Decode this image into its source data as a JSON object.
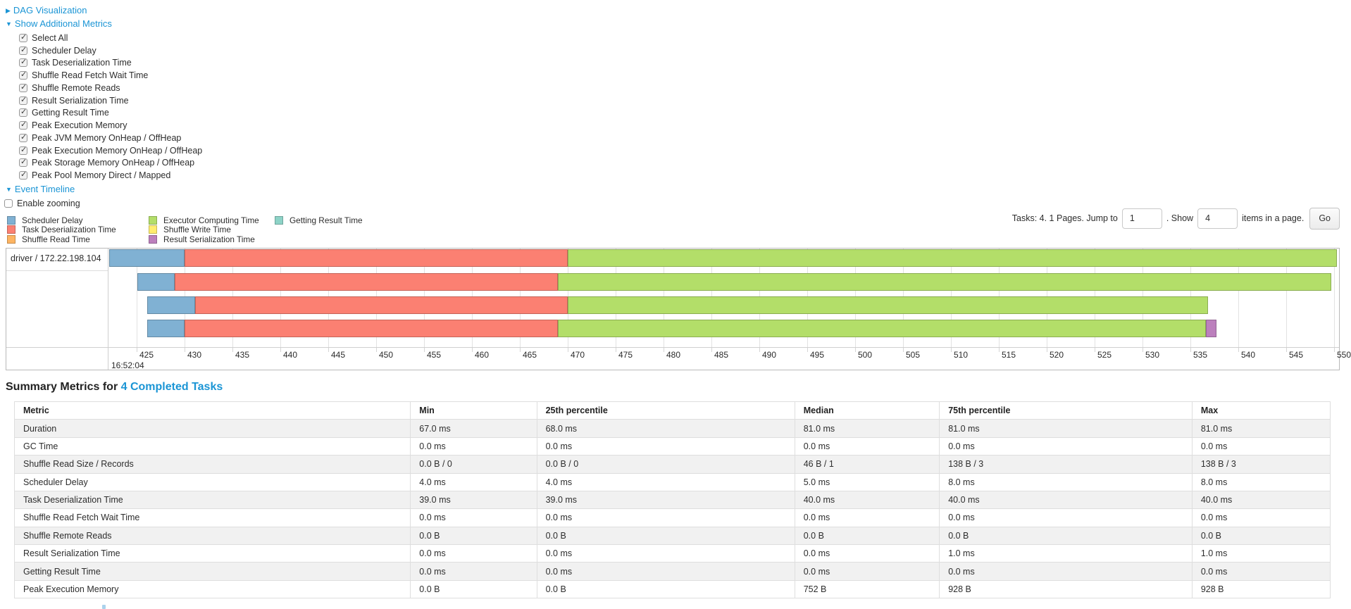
{
  "icons": {
    "collapsed_arrow": "▶",
    "expanded_arrow": "▼",
    "check": "✓"
  },
  "colors": {
    "link": "#1b95d5",
    "scheduler_delay": "#80B1D3",
    "task_deserialization": "#FB8072",
    "shuffle_read": "#FDB462",
    "executor_computing": "#B3DE69",
    "shuffle_write": "#FFED6F",
    "result_serialization": "#BC80BD",
    "getting_result": "#8DD3C7"
  },
  "nav": {
    "dag_label": "DAG Visualization",
    "metrics_label": "Show Additional Metrics",
    "timeline_label": "Event Timeline",
    "enable_zooming_label": "Enable zooming"
  },
  "metrics_panel": {
    "items": [
      "Select All",
      "Scheduler Delay",
      "Task Deserialization Time",
      "Shuffle Read Fetch Wait Time",
      "Shuffle Remote Reads",
      "Result Serialization Time",
      "Getting Result Time",
      "Peak Execution Memory",
      "Peak JVM Memory OnHeap / OffHeap",
      "Peak Execution Memory OnHeap / OffHeap",
      "Peak Storage Memory OnHeap / OffHeap",
      "Peak Pool Memory Direct / Mapped"
    ],
    "all_checked": true
  },
  "pagination": {
    "tasks_text": "Tasks: 4. 1 Pages. Jump to",
    "jump_value": "1",
    "show_text": ". Show",
    "show_value": "4",
    "items_text": "items in a page.",
    "go_label": "Go"
  },
  "legend": {
    "columns": [
      [
        {
          "key": "scheduler_delay",
          "label": "Scheduler Delay"
        },
        {
          "key": "task_deserialization",
          "label": "Task Deserialization Time"
        },
        {
          "key": "shuffle_read",
          "label": "Shuffle Read Time"
        }
      ],
      [
        {
          "key": "executor_computing",
          "label": "Executor Computing Time"
        },
        {
          "key": "shuffle_write",
          "label": "Shuffle Write Time"
        },
        {
          "key": "result_serialization",
          "label": "Result Serialization Time"
        }
      ],
      [
        {
          "key": "getting_result",
          "label": "Getting Result Time"
        }
      ]
    ]
  },
  "chart_data": {
    "type": "bar",
    "subtype": "horizontal-stacked-task-timeline",
    "group_label": "driver / 172.22.198.104",
    "x_axis": {
      "major_label": "16:52:04",
      "unit": "ms within second",
      "min": 422.1,
      "max": 550.7,
      "tick_start": 425,
      "tick_step": 5,
      "tick_end": 550
    },
    "rows": [
      {
        "segments": [
          {
            "key": "scheduler_delay",
            "start": 422.1,
            "end": 430.0
          },
          {
            "key": "task_deserialization",
            "start": 430.0,
            "end": 470.0
          },
          {
            "key": "executor_computing",
            "start": 470.0,
            "end": 550.3
          }
        ]
      },
      {
        "segments": [
          {
            "key": "scheduler_delay",
            "start": 425.1,
            "end": 429.0
          },
          {
            "key": "task_deserialization",
            "start": 429.0,
            "end": 469.0
          },
          {
            "key": "executor_computing",
            "start": 469.0,
            "end": 549.7
          }
        ]
      },
      {
        "segments": [
          {
            "key": "scheduler_delay",
            "start": 426.1,
            "end": 431.1
          },
          {
            "key": "task_deserialization",
            "start": 431.1,
            "end": 470.0
          },
          {
            "key": "executor_computing",
            "start": 470.0,
            "end": 536.8
          }
        ]
      },
      {
        "segments": [
          {
            "key": "scheduler_delay",
            "start": 426.1,
            "end": 430.0
          },
          {
            "key": "task_deserialization",
            "start": 430.0,
            "end": 469.0
          },
          {
            "key": "executor_computing",
            "start": 469.0,
            "end": 536.6
          },
          {
            "key": "result_serialization",
            "start": 536.6,
            "end": 537.7
          }
        ]
      }
    ]
  },
  "summary": {
    "title_prefix": "Summary Metrics for ",
    "title_link": "4 Completed Tasks",
    "headers": [
      "Metric",
      "Min",
      "25th percentile",
      "Median",
      "75th percentile",
      "Max"
    ],
    "rows": [
      {
        "metric": "Duration",
        "values": [
          "67.0 ms",
          "68.0 ms",
          "81.0 ms",
          "81.0 ms",
          "81.0 ms"
        ]
      },
      {
        "metric": "GC Time",
        "values": [
          "0.0 ms",
          "0.0 ms",
          "0.0 ms",
          "0.0 ms",
          "0.0 ms"
        ]
      },
      {
        "metric": "Shuffle Read Size / Records",
        "values": [
          "0.0 B / 0",
          "0.0 B / 0",
          "46 B / 1",
          "138 B / 3",
          "138 B / 3"
        ]
      },
      {
        "metric": "Scheduler Delay",
        "values": [
          "4.0 ms",
          "4.0 ms",
          "5.0 ms",
          "8.0 ms",
          "8.0 ms"
        ]
      },
      {
        "metric": "Task Deserialization Time",
        "values": [
          "39.0 ms",
          "39.0 ms",
          "40.0 ms",
          "40.0 ms",
          "40.0 ms"
        ]
      },
      {
        "metric": "Shuffle Read Fetch Wait Time",
        "values": [
          "0.0 ms",
          "0.0 ms",
          "0.0 ms",
          "0.0 ms",
          "0.0 ms"
        ]
      },
      {
        "metric": "Shuffle Remote Reads",
        "values": [
          "0.0 B",
          "0.0 B",
          "0.0 B",
          "0.0 B",
          "0.0 B"
        ]
      },
      {
        "metric": "Result Serialization Time",
        "values": [
          "0.0 ms",
          "0.0 ms",
          "0.0 ms",
          "1.0 ms",
          "1.0 ms"
        ]
      },
      {
        "metric": "Getting Result Time",
        "values": [
          "0.0 ms",
          "0.0 ms",
          "0.0 ms",
          "0.0 ms",
          "0.0 ms"
        ]
      },
      {
        "metric": "Peak Execution Memory",
        "values": [
          "0.0 B",
          "0.0 B",
          "752 B",
          "928 B",
          "928 B"
        ]
      }
    ]
  }
}
